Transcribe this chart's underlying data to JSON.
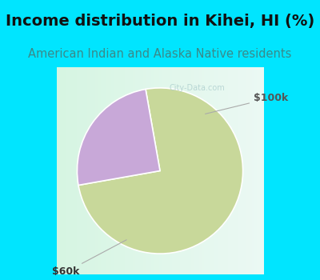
{
  "title": "Income distribution in Kihei, HI (%)",
  "subtitle": "American Indian and Alaska Native residents",
  "title_color": "#111111",
  "subtitle_color": "#3a8a8a",
  "title_fontsize": 14,
  "subtitle_fontsize": 10.5,
  "bg_color": "#00e5ff",
  "chart_bg_left": "#e8f5ee",
  "chart_bg_right": "#f5fff5",
  "slices": [
    75,
    25
  ],
  "labels": [
    "$60k",
    "$100k"
  ],
  "slice_colors": [
    "#c8d89a",
    "#c8a8d8"
  ],
  "startangle": 100,
  "watermark": "City-Data.com"
}
